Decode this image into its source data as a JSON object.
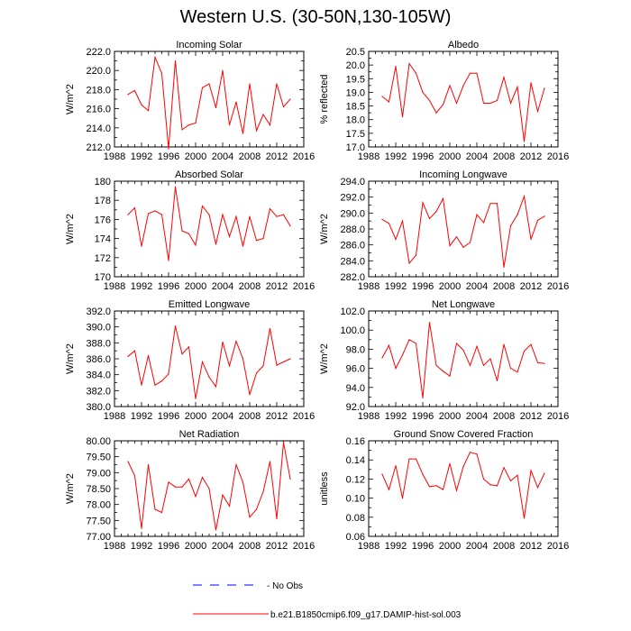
{
  "figure": {
    "title": "Western U.S. (30-50N,130-105W)"
  },
  "legend": {
    "obs_label": "No Obs",
    "model_label": "b.e21.B1850cmip6.f09_g17.DAMIP-hist-sol.003",
    "obs_color": "#0000ff",
    "model_color": "#ff0000"
  },
  "chart_data": [
    {
      "type": "line",
      "title": "Incoming Solar",
      "ylabel": "W/m^2",
      "xlim": [
        1988,
        2016
      ],
      "ylim": [
        212,
        222
      ],
      "xticks": [
        1988,
        1992,
        1996,
        2000,
        2004,
        2008,
        2012,
        2016
      ],
      "yticks": [
        "212.0",
        "214.0",
        "216.0",
        "218.0",
        "220.0",
        "222.0"
      ],
      "x": [
        1990,
        1991,
        1992,
        1993,
        1994,
        1995,
        1996,
        1997,
        1998,
        1999,
        2000,
        2001,
        2002,
        2003,
        2004,
        2005,
        2006,
        2007,
        2008,
        2009,
        2010,
        2011,
        2012,
        2013,
        2014
      ],
      "series": [
        {
          "values": [
            217.5,
            217.9,
            216.4,
            215.8,
            221.4,
            219.7,
            211.8,
            221.0,
            213.8,
            214.3,
            214.5,
            218.2,
            218.6,
            216.1,
            220.0,
            214.3,
            216.7,
            213.4,
            218.6,
            213.7,
            215.4,
            214.3,
            218.6,
            216.2,
            217.0
          ]
        }
      ]
    },
    {
      "type": "line",
      "title": "Albedo",
      "ylabel": "% reflected",
      "xlim": [
        1988,
        2016
      ],
      "ylim": [
        17.0,
        20.5
      ],
      "xticks": [
        1988,
        1992,
        1996,
        2000,
        2004,
        2008,
        2012,
        2016
      ],
      "yticks": [
        "17.0",
        "17.5",
        "18.0",
        "18.5",
        "19.0",
        "19.5",
        "20.0",
        "20.5"
      ],
      "x": [
        1990,
        1991,
        1992,
        1993,
        1994,
        1995,
        1996,
        1997,
        1998,
        1999,
        2000,
        2001,
        2002,
        2003,
        2004,
        2005,
        2006,
        2007,
        2008,
        2009,
        2010,
        2011,
        2012,
        2013,
        2014
      ],
      "series": [
        {
          "values": [
            18.85,
            18.65,
            19.95,
            18.1,
            20.05,
            19.7,
            19.0,
            18.7,
            18.25,
            18.55,
            19.25,
            18.6,
            19.25,
            19.7,
            19.7,
            18.6,
            18.6,
            18.7,
            19.55,
            18.6,
            19.2,
            17.2,
            19.35,
            18.3,
            19.15
          ]
        }
      ]
    },
    {
      "type": "line",
      "title": "Absorbed Solar",
      "ylabel": "W/m^2",
      "xlim": [
        1988,
        2016
      ],
      "ylim": [
        170,
        180
      ],
      "xticks": [
        1988,
        1992,
        1996,
        2000,
        2004,
        2008,
        2012,
        2016
      ],
      "yticks": [
        "170",
        "172",
        "174",
        "176",
        "178",
        "180"
      ],
      "x": [
        1990,
        1991,
        1992,
        1993,
        1994,
        1995,
        1996,
        1997,
        1998,
        1999,
        2000,
        2001,
        2002,
        2003,
        2004,
        2005,
        2006,
        2007,
        2008,
        2009,
        2010,
        2011,
        2012,
        2013,
        2014
      ],
      "series": [
        {
          "values": [
            176.5,
            177.2,
            173.2,
            176.6,
            176.9,
            176.5,
            171.7,
            179.4,
            174.8,
            174.5,
            173.3,
            177.4,
            176.5,
            173.4,
            176.5,
            174.2,
            176.3,
            173.2,
            176.3,
            173.8,
            174.0,
            177.1,
            176.3,
            176.5,
            175.3
          ]
        }
      ]
    },
    {
      "type": "line",
      "title": "Incoming Longwave",
      "ylabel": "W/m^2",
      "xlim": [
        1988,
        2016
      ],
      "ylim": [
        282,
        294
      ],
      "xticks": [
        1988,
        1992,
        1996,
        2000,
        2004,
        2008,
        2012,
        2016
      ],
      "yticks": [
        "282.0",
        "284.0",
        "286.0",
        "288.0",
        "290.0",
        "292.0",
        "294.0"
      ],
      "x": [
        1990,
        1991,
        1992,
        1993,
        1994,
        1995,
        1996,
        1997,
        1998,
        1999,
        2000,
        2001,
        2002,
        2003,
        2004,
        2005,
        2006,
        2007,
        2008,
        2009,
        2010,
        2011,
        2012,
        2013,
        2014
      ],
      "series": [
        {
          "values": [
            289.2,
            288.7,
            286.7,
            289.0,
            283.7,
            284.7,
            291.3,
            289.3,
            290.2,
            291.8,
            285.9,
            287.0,
            285.7,
            286.3,
            289.8,
            288.8,
            291.2,
            291.2,
            283.2,
            288.4,
            289.8,
            292.1,
            286.7,
            289.1,
            289.6
          ]
        }
      ]
    },
    {
      "type": "line",
      "title": "Emitted Longwave",
      "ylabel": "W/m^2",
      "xlim": [
        1988,
        2016
      ],
      "ylim": [
        380,
        392
      ],
      "xticks": [
        1988,
        1992,
        1996,
        2000,
        2004,
        2008,
        2012,
        2016
      ],
      "yticks": [
        "380.0",
        "382.0",
        "384.0",
        "386.0",
        "388.0",
        "390.0",
        "392.0"
      ],
      "x": [
        1990,
        1991,
        1992,
        1993,
        1994,
        1995,
        1996,
        1997,
        1998,
        1999,
        2000,
        2001,
        2002,
        2003,
        2004,
        2005,
        2006,
        2007,
        2008,
        2009,
        2010,
        2011,
        2012,
        2013,
        2014
      ],
      "series": [
        {
          "values": [
            386.3,
            387.0,
            382.7,
            386.4,
            382.7,
            383.2,
            384.1,
            390.1,
            386.6,
            387.5,
            381.0,
            385.6,
            383.7,
            382.5,
            388.1,
            385.1,
            388.2,
            386.0,
            381.5,
            384.2,
            385.1,
            389.8,
            385.2,
            385.6,
            386.0
          ]
        }
      ]
    },
    {
      "type": "line",
      "title": "Net Longwave",
      "ylabel": "W/m^2",
      "xlim": [
        1988,
        2016
      ],
      "ylim": [
        92,
        102
      ],
      "xticks": [
        1988,
        1992,
        1996,
        2000,
        2004,
        2008,
        2012,
        2016
      ],
      "yticks": [
        "92.0",
        "94.0",
        "96.0",
        "98.0",
        "100.0",
        "102.0"
      ],
      "x": [
        1990,
        1991,
        1992,
        1993,
        1994,
        1995,
        1996,
        1997,
        1998,
        1999,
        2000,
        2001,
        2002,
        2003,
        2004,
        2005,
        2006,
        2007,
        2008,
        2009,
        2010,
        2011,
        2012,
        2013,
        2014
      ],
      "series": [
        {
          "values": [
            97.1,
            98.4,
            96.0,
            97.4,
            99.0,
            98.6,
            92.9,
            100.8,
            96.3,
            95.7,
            95.2,
            98.6,
            97.9,
            96.3,
            98.3,
            96.3,
            97.0,
            94.7,
            98.5,
            96.0,
            95.6,
            97.8,
            98.5,
            96.6,
            96.5
          ]
        }
      ]
    },
    {
      "type": "line",
      "title": "Net Radiation",
      "ylabel": "W/m^2",
      "xlim": [
        1988,
        2016
      ],
      "ylim": [
        77.0,
        80.0
      ],
      "xticks": [
        1988,
        1992,
        1996,
        2000,
        2004,
        2008,
        2012,
        2016
      ],
      "yticks": [
        "77.00",
        "77.50",
        "78.00",
        "78.50",
        "79.00",
        "79.50",
        "80.00"
      ],
      "x": [
        1990,
        1991,
        1992,
        1993,
        1994,
        1995,
        1996,
        1997,
        1998,
        1999,
        2000,
        2001,
        2002,
        2003,
        2004,
        2005,
        2006,
        2007,
        2008,
        2009,
        2010,
        2011,
        2012,
        2013,
        2014
      ],
      "series": [
        {
          "values": [
            79.35,
            78.9,
            77.25,
            79.25,
            77.85,
            77.75,
            78.7,
            78.55,
            78.55,
            78.8,
            78.25,
            78.85,
            78.5,
            77.2,
            78.3,
            77.95,
            79.25,
            78.7,
            77.6,
            77.85,
            78.4,
            79.35,
            77.55,
            79.95,
            78.8
          ]
        }
      ]
    },
    {
      "type": "line",
      "title": "Ground Snow Covered Fraction",
      "ylabel": "unitless",
      "xlim": [
        1988,
        2016
      ],
      "ylim": [
        0.06,
        0.16
      ],
      "xticks": [
        1988,
        1992,
        1996,
        2000,
        2004,
        2008,
        2012,
        2016
      ],
      "yticks": [
        "0.06",
        "0.08",
        "0.10",
        "0.12",
        "0.14",
        "0.16"
      ],
      "x": [
        1990,
        1991,
        1992,
        1993,
        1994,
        1995,
        1996,
        1997,
        1998,
        1999,
        2000,
        2001,
        2002,
        2003,
        2004,
        2005,
        2006,
        2007,
        2008,
        2009,
        2010,
        2011,
        2012,
        2013,
        2014
      ],
      "series": [
        {
          "values": [
            0.125,
            0.109,
            0.134,
            0.1,
            0.141,
            0.141,
            0.125,
            0.112,
            0.113,
            0.109,
            0.136,
            0.108,
            0.133,
            0.148,
            0.146,
            0.12,
            0.114,
            0.113,
            0.132,
            0.118,
            0.124,
            0.079,
            0.129,
            0.111,
            0.126
          ]
        }
      ]
    }
  ]
}
